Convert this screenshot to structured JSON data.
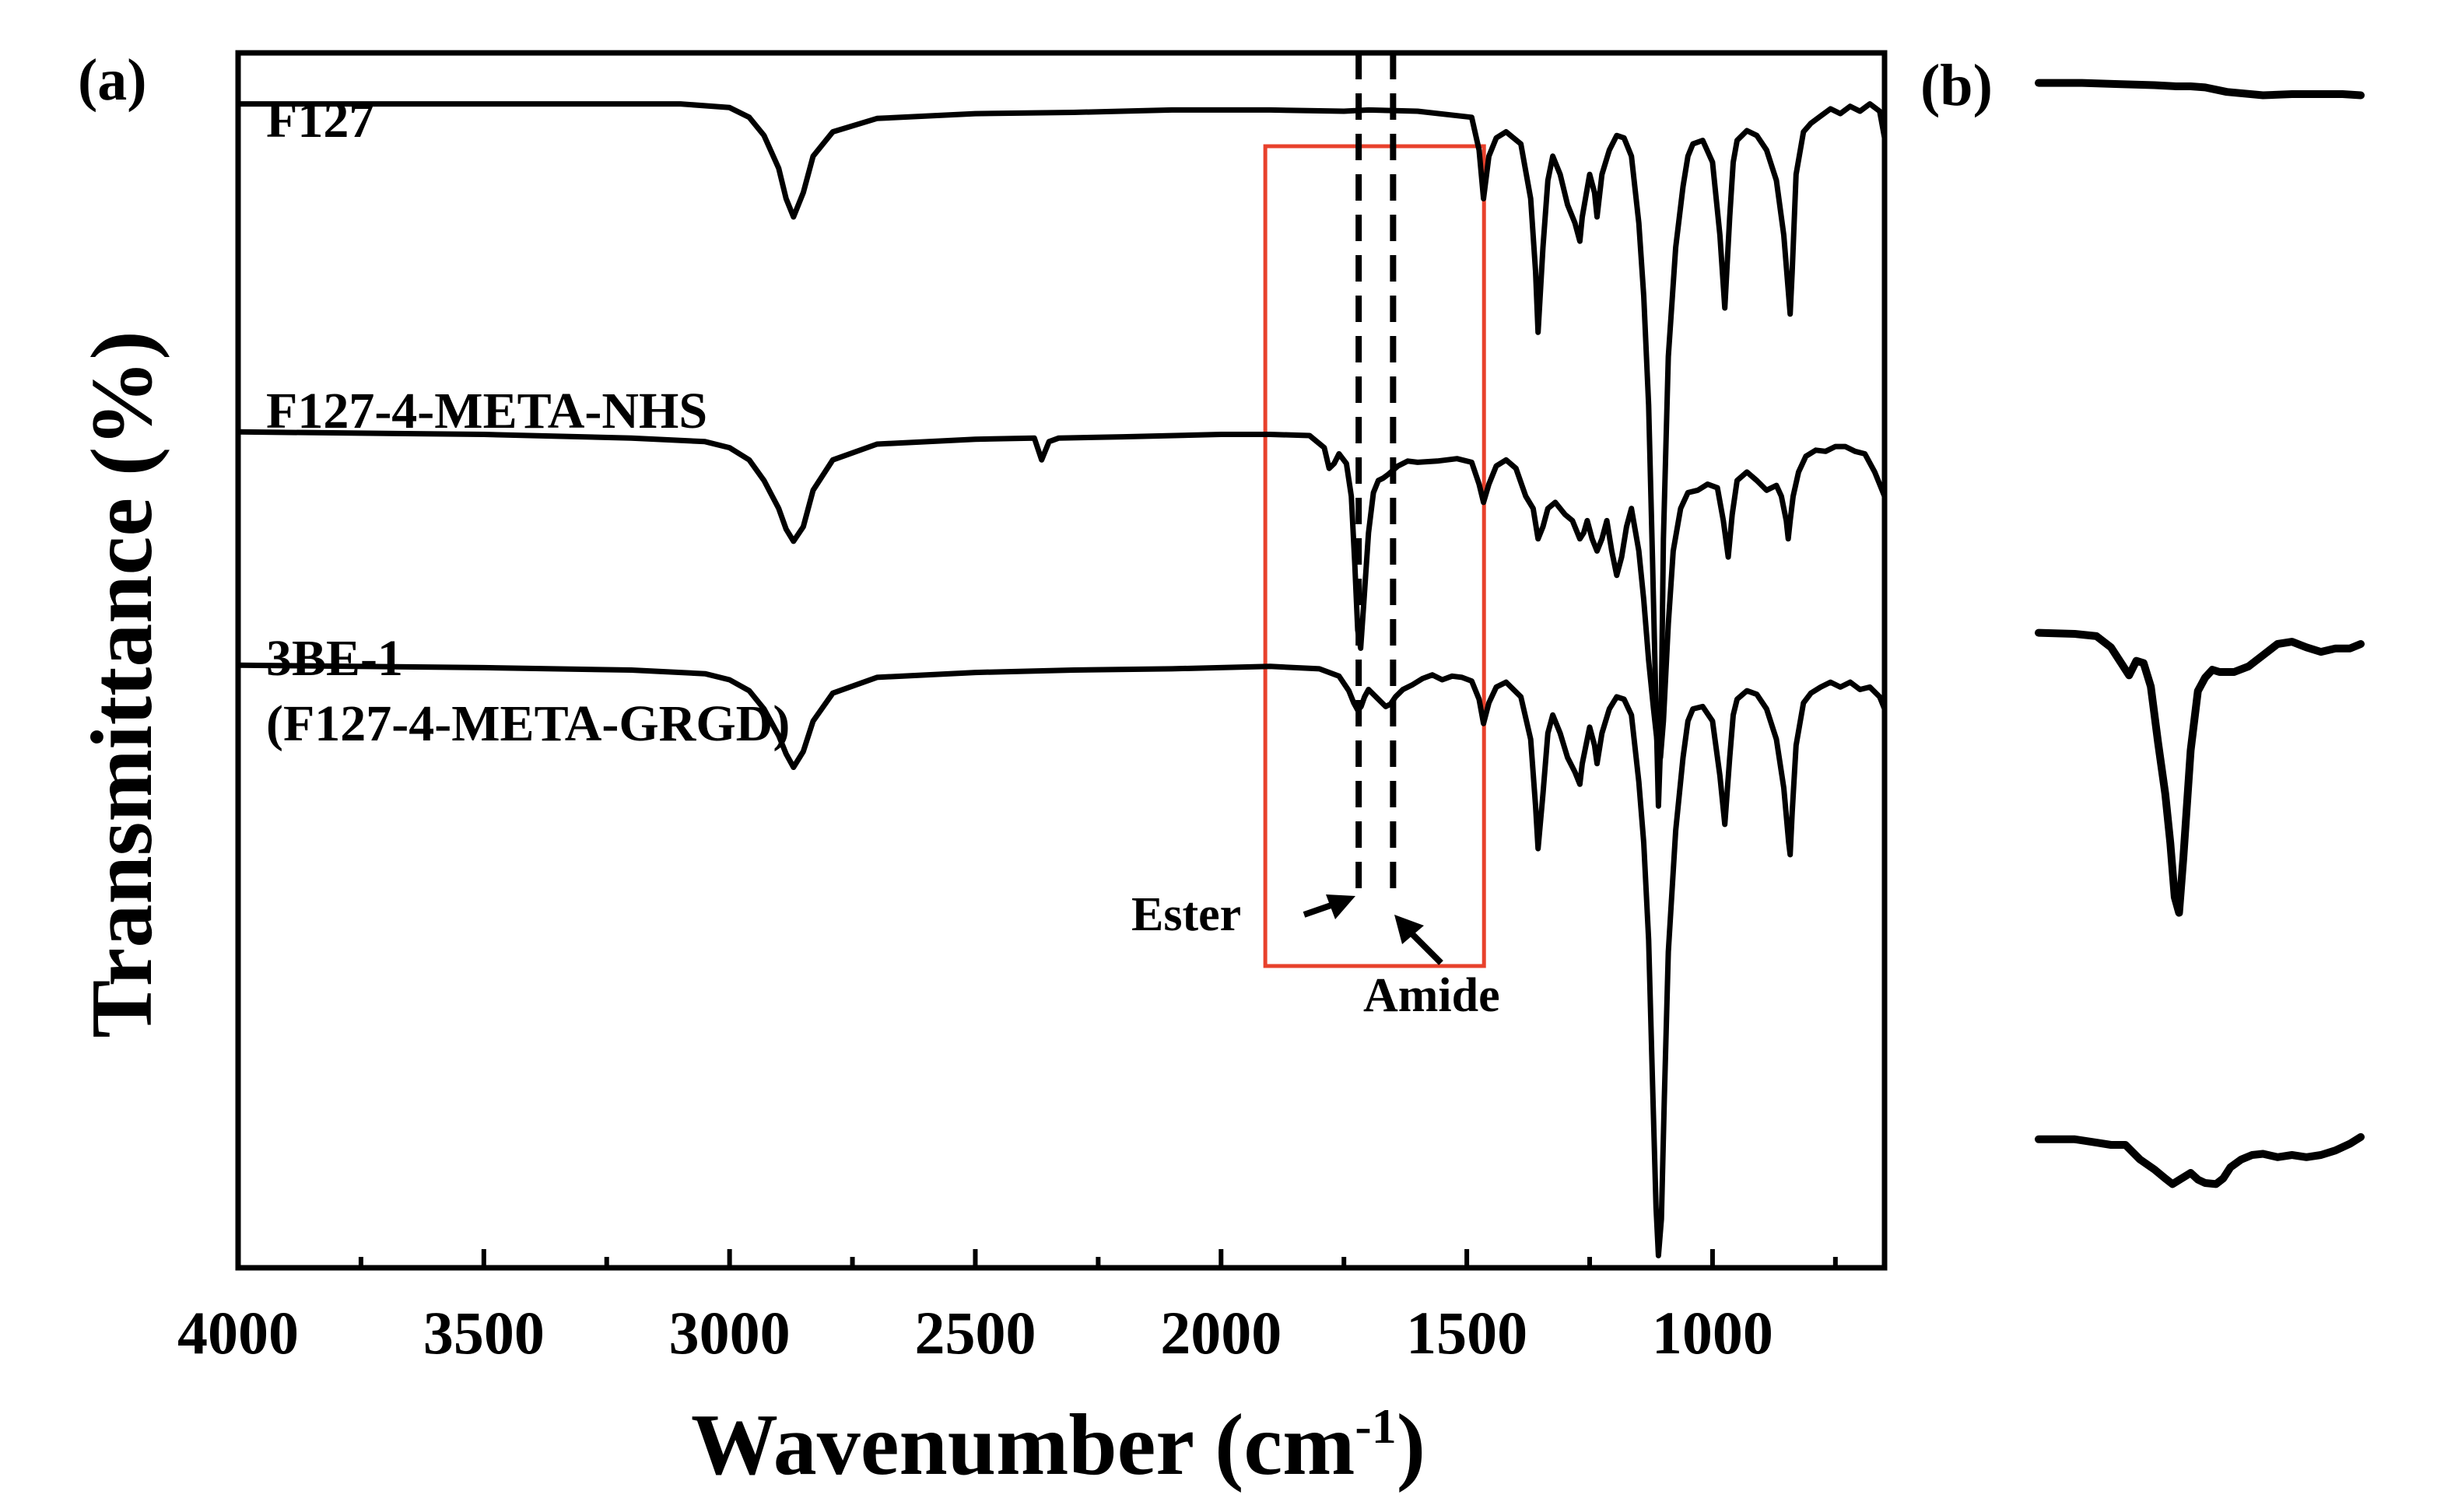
{
  "panel_a_label": "(a)",
  "panel_b_label": "(b)",
  "colors": {
    "ink": "#000000",
    "highlight_box": "#e8412c",
    "background": "#ffffff"
  },
  "annotations": {
    "ester": "Ester",
    "amide": "Amide"
  },
  "chart_data": [
    {
      "panel": "(a)",
      "type": "line",
      "title": "",
      "xlabel": "Wavenumber (cm-1)",
      "xlabel_main": "Wavenumber (cm",
      "xlabel_sup": "-1",
      "xlabel_close": ")",
      "ylabel": "Transmittance (%)",
      "xlim": [
        4000,
        650
      ],
      "x_reversed": true,
      "xticks": [
        4000,
        3500,
        3000,
        2500,
        2000,
        1500,
        1000
      ],
      "xtick_labels": [
        "4000",
        "3500",
        "3000",
        "2500",
        "2000",
        "1500",
        "1000"
      ],
      "yticks_shown": false,
      "ylim": [
        0,
        100
      ],
      "grid": false,
      "highlight_region_cm1": [
        1910,
        1465
      ],
      "reference_lines_cm1": [
        1720,
        1650
      ],
      "series": [
        {
          "name": "F127",
          "label_lines": [
            "F127"
          ],
          "x": [
            4000,
            3100,
            3000,
            2960,
            2930,
            2900,
            2885,
            2870,
            2850,
            2830,
            2790,
            2700,
            2500,
            2300,
            2100,
            1900,
            1750,
            1700,
            1600,
            1490,
            1475,
            1466,
            1455,
            1440,
            1420,
            1390,
            1370,
            1360,
            1355,
            1345,
            1335,
            1325,
            1310,
            1295,
            1280,
            1270,
            1265,
            1250,
            1240,
            1235,
            1225,
            1210,
            1195,
            1180,
            1165,
            1150,
            1140,
            1130,
            1122,
            1115,
            1110,
            1105,
            1100,
            1090,
            1075,
            1060,
            1050,
            1040,
            1020,
            1000,
            985,
            975,
            965,
            958,
            950,
            930,
            910,
            890,
            870,
            855,
            845,
            842,
            838,
            830,
            815,
            800,
            780,
            760,
            740,
            720,
            700,
            680,
            660,
            650
          ],
          "y": [
            95.8,
            95.8,
            95.5,
            94.7,
            93.2,
            90.5,
            88.0,
            86.5,
            88.5,
            91.5,
            93.5,
            94.6,
            95.0,
            95.1,
            95.3,
            95.3,
            95.2,
            95.3,
            95.2,
            94.7,
            92.0,
            88.0,
            91.5,
            93.0,
            93.5,
            92.5,
            88.0,
            82.0,
            77.0,
            84.0,
            89.5,
            91.5,
            90.0,
            87.5,
            86.0,
            84.5,
            86.5,
            90.0,
            88.5,
            86.5,
            90.0,
            92.0,
            93.2,
            93.0,
            91.5,
            86.0,
            80.0,
            71.0,
            58.0,
            46.0,
            38.0,
            44.0,
            60.0,
            75.0,
            84.0,
            89.0,
            91.5,
            92.5,
            92.8,
            91.0,
            85.0,
            79.0,
            86.5,
            91.0,
            92.8,
            93.6,
            93.2,
            92.0,
            89.5,
            85.0,
            80.0,
            78.5,
            82.0,
            90.0,
            93.5,
            94.2,
            94.8,
            95.4,
            95.0,
            95.6,
            95.2,
            95.8,
            95.2,
            93.0
          ]
        },
        {
          "name": "F127-4-META-NHS",
          "label_lines": [
            "F127-4-META-NHS"
          ],
          "x": [
            4000,
            3500,
            3200,
            3050,
            3000,
            2960,
            2930,
            2900,
            2885,
            2870,
            2850,
            2830,
            2790,
            2700,
            2500,
            2380,
            2365,
            2350,
            2330,
            2200,
            2000,
            1900,
            1820,
            1790,
            1780,
            1770,
            1760,
            1745,
            1735,
            1728,
            1722,
            1716,
            1710,
            1700,
            1690,
            1680,
            1670,
            1660,
            1640,
            1620,
            1600,
            1560,
            1520,
            1490,
            1475,
            1466,
            1455,
            1440,
            1420,
            1400,
            1380,
            1365,
            1355,
            1345,
            1335,
            1320,
            1300,
            1285,
            1270,
            1262,
            1255,
            1245,
            1235,
            1225,
            1215,
            1205,
            1195,
            1185,
            1175,
            1165,
            1150,
            1140,
            1130,
            1120,
            1112,
            1106,
            1100,
            1090,
            1080,
            1065,
            1050,
            1030,
            1010,
            990,
            978,
            968,
            960,
            950,
            930,
            910,
            890,
            870,
            860,
            850,
            846,
            842,
            836,
            825,
            810,
            790,
            770,
            750,
            730,
            710,
            690,
            670,
            650
          ],
          "y": [
            68.8,
            68.6,
            68.3,
            68.0,
            67.5,
            66.5,
            64.8,
            62.5,
            60.8,
            59.8,
            61.0,
            64.0,
            66.5,
            67.8,
            68.2,
            68.3,
            66.5,
            68.0,
            68.3,
            68.4,
            68.6,
            68.6,
            68.5,
            67.5,
            65.8,
            66.2,
            67.0,
            66.2,
            63.5,
            58.0,
            52.5,
            51.0,
            54.5,
            60.5,
            63.8,
            64.8,
            65.0,
            65.3,
            66.0,
            66.4,
            66.3,
            66.4,
            66.6,
            66.3,
            64.5,
            63.0,
            64.5,
            66.0,
            66.5,
            65.8,
            63.5,
            62.5,
            60.0,
            61.0,
            62.5,
            63.0,
            62.0,
            61.5,
            60.0,
            60.5,
            61.5,
            60.0,
            59.0,
            60.0,
            61.5,
            59.0,
            57.0,
            58.5,
            61.0,
            62.5,
            59.0,
            55.0,
            50.0,
            46.0,
            43.0,
            42.0,
            45.0,
            53.0,
            59.0,
            62.5,
            63.8,
            64.0,
            64.5,
            64.2,
            61.5,
            58.5,
            62.0,
            64.8,
            65.5,
            64.8,
            64.0,
            64.4,
            63.5,
            61.5,
            60.0,
            61.5,
            63.5,
            65.5,
            66.8,
            67.3,
            67.2,
            67.6,
            67.6,
            67.2,
            67.0,
            65.5,
            63.5
          ]
        },
        {
          "name": "3BE-1 (F127-4-META-GRGD)",
          "label_lines": [
            "3BE-1",
            "(F127-4-META-GRGD)"
          ],
          "x": [
            4000,
            3500,
            3200,
            3050,
            3000,
            2960,
            2930,
            2900,
            2885,
            2870,
            2850,
            2830,
            2790,
            2700,
            2500,
            2300,
            2100,
            1900,
            1800,
            1760,
            1740,
            1730,
            1722,
            1715,
            1708,
            1700,
            1680,
            1665,
            1655,
            1645,
            1630,
            1610,
            1590,
            1570,
            1550,
            1530,
            1510,
            1490,
            1475,
            1466,
            1455,
            1440,
            1420,
            1390,
            1370,
            1360,
            1355,
            1345,
            1335,
            1325,
            1310,
            1295,
            1280,
            1270,
            1265,
            1250,
            1240,
            1235,
            1225,
            1210,
            1195,
            1180,
            1165,
            1150,
            1140,
            1130,
            1122,
            1115,
            1110,
            1104,
            1098,
            1090,
            1075,
            1060,
            1050,
            1040,
            1020,
            1000,
            985,
            975,
            965,
            958,
            950,
            930,
            910,
            890,
            870,
            855,
            845,
            842,
            838,
            830,
            815,
            800,
            780,
            760,
            740,
            720,
            700,
            680,
            660,
            650
          ],
          "y": [
            49.6,
            49.4,
            49.2,
            48.9,
            48.4,
            47.5,
            46.0,
            43.8,
            42.3,
            41.2,
            42.5,
            45.0,
            47.3,
            48.6,
            49.0,
            49.2,
            49.3,
            49.5,
            49.3,
            48.7,
            47.5,
            46.5,
            45.9,
            46.2,
            47.0,
            47.6,
            46.8,
            46.2,
            46.4,
            47.0,
            47.6,
            48.0,
            48.5,
            48.8,
            48.4,
            48.7,
            48.6,
            48.3,
            46.8,
            44.8,
            46.5,
            47.8,
            48.2,
            47.0,
            43.5,
            38.0,
            34.5,
            39.0,
            44.0,
            45.5,
            44.0,
            42.0,
            40.8,
            39.8,
            41.5,
            44.5,
            43.0,
            41.5,
            44.0,
            46.0,
            47.0,
            46.8,
            45.5,
            40.0,
            35.0,
            27.0,
            15.0,
            5.0,
            1.0,
            4.0,
            14.0,
            26.0,
            36.0,
            42.0,
            45.0,
            46.0,
            46.2,
            45.0,
            40.5,
            36.5,
            42.0,
            45.5,
            46.8,
            47.5,
            47.2,
            46.0,
            43.5,
            39.5,
            35.0,
            34.0,
            37.5,
            43.0,
            46.5,
            47.3,
            47.8,
            48.2,
            47.8,
            48.2,
            47.6,
            47.8,
            47.0,
            46.0
          ]
        }
      ]
    },
    {
      "panel": "(b)",
      "type": "line",
      "title": "",
      "xlabel": "",
      "ylabel": "",
      "axes_shown": false,
      "note": "enlarged view of the boxed region of panel (a); traces in same order as panel (a)",
      "xlim": [
        1910,
        1465
      ],
      "x_reversed": true,
      "series": [
        {
          "name": "F127",
          "x": [
            1910,
            1850,
            1800,
            1750,
            1720,
            1700,
            1680,
            1650,
            1600,
            1560,
            1520,
            1490,
            1465
          ],
          "y": [
            0.6,
            0.6,
            0.7,
            0.8,
            0.9,
            0.9,
            1.0,
            1.4,
            1.7,
            1.6,
            1.6,
            1.6,
            1.7
          ]
        },
        {
          "name": "F127-4-META-NHS",
          "x": [
            1910,
            1860,
            1830,
            1810,
            1795,
            1785,
            1775,
            1765,
            1755,
            1745,
            1735,
            1728,
            1722,
            1716,
            1710,
            1700,
            1690,
            1680,
            1670,
            1660,
            1640,
            1620,
            1600,
            1580,
            1560,
            1540,
            1520,
            1500,
            1480,
            1465
          ],
          "y": [
            4.0,
            4.1,
            4.3,
            5.3,
            6.8,
            7.8,
            6.5,
            6.7,
            8.8,
            13.8,
            18.4,
            22.8,
            27.6,
            29.0,
            24.0,
            14.5,
            9.2,
            8.0,
            7.3,
            7.5,
            7.5,
            7.0,
            6.0,
            5.0,
            4.8,
            5.3,
            5.7,
            5.4,
            5.4,
            5.0
          ]
        },
        {
          "name": "3BE-1 (F127-4-META-GRGD)",
          "x": [
            1910,
            1860,
            1830,
            1810,
            1790,
            1770,
            1750,
            1735,
            1725,
            1715,
            1700,
            1690,
            1680,
            1665,
            1655,
            1645,
            1630,
            1615,
            1600,
            1580,
            1560,
            1540,
            1520,
            1500,
            1480,
            1465
          ],
          "y": [
            2.0,
            2.0,
            2.3,
            2.5,
            2.5,
            3.8,
            4.7,
            5.5,
            6.0,
            5.6,
            5.0,
            5.6,
            5.9,
            6.0,
            5.5,
            4.5,
            3.8,
            3.4,
            3.3,
            3.6,
            3.4,
            3.6,
            3.4,
            3.0,
            2.4,
            1.8
          ]
        }
      ]
    }
  ]
}
